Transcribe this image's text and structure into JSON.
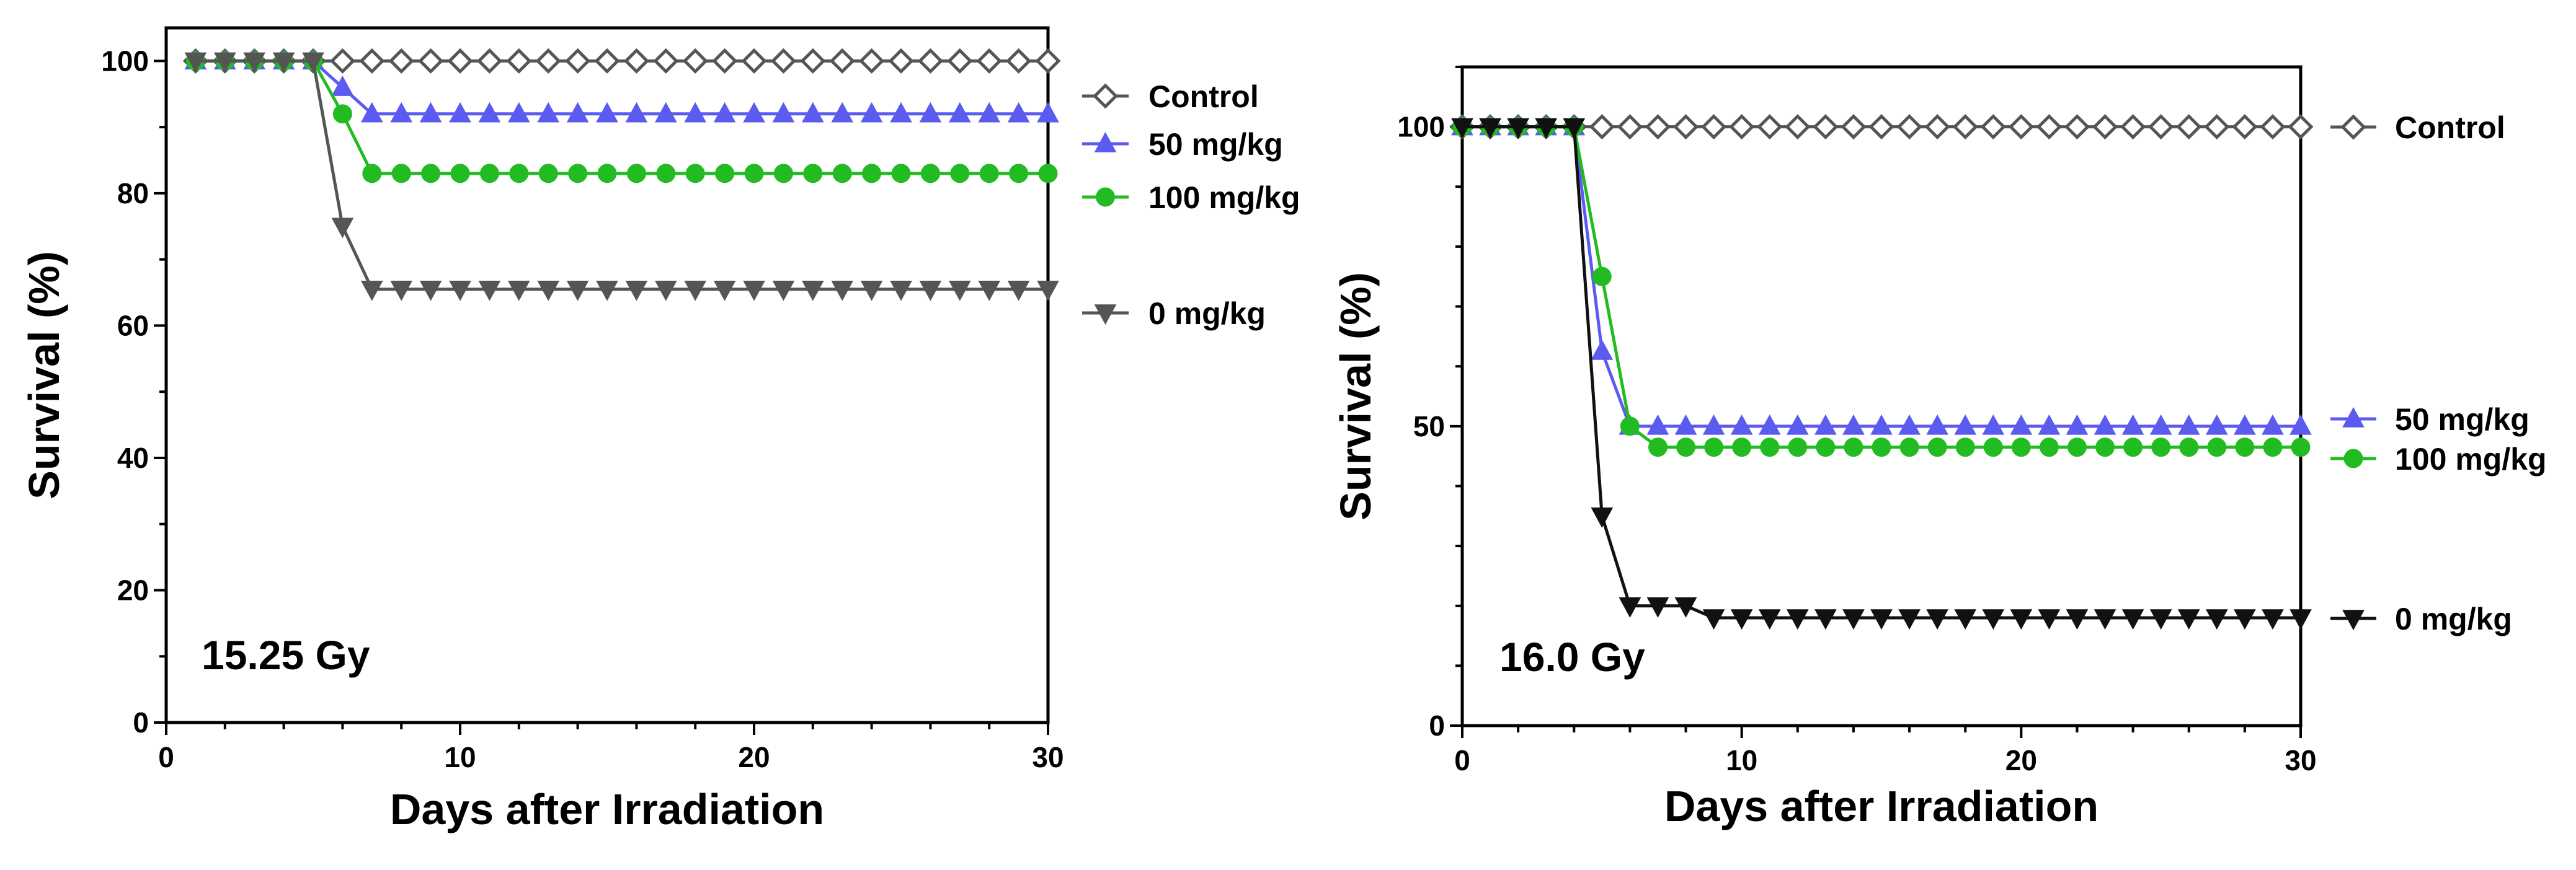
{
  "chart_data": [
    {
      "type": "line",
      "title": "",
      "annotation": "15.25 Gy",
      "xlabel": "Days after Irradiation",
      "ylabel": "Survival (%)",
      "xlim": [
        0,
        30
      ],
      "ylim": [
        0,
        105
      ],
      "xticks": [
        0,
        10,
        20,
        30
      ],
      "yticks": [
        0,
        20,
        40,
        60,
        80,
        100
      ],
      "x_tick_labels": [
        "0",
        "10",
        "20",
        "30"
      ],
      "y_tick_labels": [
        "0",
        "20",
        "40",
        "60",
        "80",
        "100"
      ],
      "grid": false,
      "legend_position": "right",
      "series": [
        {
          "name": "Control",
          "color": "#555555",
          "marker": "diamond-open",
          "x": [
            1,
            2,
            3,
            4,
            5,
            6,
            7,
            8,
            9,
            10,
            11,
            12,
            13,
            14,
            15,
            16,
            17,
            18,
            19,
            20,
            21,
            22,
            23,
            24,
            25,
            26,
            27,
            28,
            29,
            30
          ],
          "values": [
            100,
            100,
            100,
            100,
            100,
            100,
            100,
            100,
            100,
            100,
            100,
            100,
            100,
            100,
            100,
            100,
            100,
            100,
            100,
            100,
            100,
            100,
            100,
            100,
            100,
            100,
            100,
            100,
            100,
            100
          ]
        },
        {
          "name": "50 mg/kg",
          "color": "#5b5bf0",
          "marker": "triangle-up",
          "x": [
            1,
            2,
            3,
            4,
            5,
            6,
            7,
            8,
            9,
            10,
            11,
            12,
            13,
            14,
            15,
            16,
            17,
            18,
            19,
            20,
            21,
            22,
            23,
            24,
            25,
            26,
            27,
            28,
            29,
            30
          ],
          "values": [
            100,
            100,
            100,
            100,
            100,
            96,
            92,
            92,
            92,
            92,
            92,
            92,
            92,
            92,
            92,
            92,
            92,
            92,
            92,
            92,
            92,
            92,
            92,
            92,
            92,
            92,
            92,
            92,
            92,
            92
          ]
        },
        {
          "name": "100 mg/kg",
          "color": "#22bb22",
          "marker": "circle",
          "x": [
            1,
            2,
            3,
            4,
            5,
            6,
            7,
            8,
            9,
            10,
            11,
            12,
            13,
            14,
            15,
            16,
            17,
            18,
            19,
            20,
            21,
            22,
            23,
            24,
            25,
            26,
            27,
            28,
            29,
            30
          ],
          "values": [
            100,
            100,
            100,
            100,
            100,
            92,
            83,
            83,
            83,
            83,
            83,
            83,
            83,
            83,
            83,
            83,
            83,
            83,
            83,
            83,
            83,
            83,
            83,
            83,
            83,
            83,
            83,
            83,
            83,
            83
          ]
        },
        {
          "name": "0 mg/kg",
          "color": "#555555",
          "marker": "triangle-down",
          "x": [
            1,
            2,
            3,
            4,
            5,
            6,
            7,
            8,
            9,
            10,
            11,
            12,
            13,
            14,
            15,
            16,
            17,
            18,
            19,
            20,
            21,
            22,
            23,
            24,
            25,
            26,
            27,
            28,
            29,
            30
          ],
          "values": [
            100,
            100,
            100,
            100,
            100,
            75,
            65.5,
            65.5,
            65.5,
            65.5,
            65.5,
            65.5,
            65.5,
            65.5,
            65.5,
            65.5,
            65.5,
            65.5,
            65.5,
            65.5,
            65.5,
            65.5,
            65.5,
            65.5,
            65.5,
            65.5,
            65.5,
            65.5,
            65.5,
            65.5
          ]
        }
      ]
    },
    {
      "type": "line",
      "title": "",
      "annotation": "16.0 Gy",
      "xlabel": "Days after Irradiation",
      "ylabel": "Survival (%)",
      "xlim": [
        0,
        30
      ],
      "ylim": [
        0,
        110
      ],
      "xticks": [
        0,
        10,
        20,
        30
      ],
      "yticks": [
        0,
        50,
        100
      ],
      "x_tick_labels": [
        "0",
        "10",
        "20",
        "30"
      ],
      "y_tick_labels": [
        "0",
        "50",
        "100"
      ],
      "grid": false,
      "legend_position": "right",
      "series": [
        {
          "name": "Control",
          "color": "#555555",
          "marker": "diamond-open",
          "x": [
            0,
            1,
            2,
            3,
            4,
            5,
            6,
            7,
            8,
            9,
            10,
            11,
            12,
            13,
            14,
            15,
            16,
            17,
            18,
            19,
            20,
            21,
            22,
            23,
            24,
            25,
            26,
            27,
            28,
            29,
            30
          ],
          "values": [
            100,
            100,
            100,
            100,
            100,
            100,
            100,
            100,
            100,
            100,
            100,
            100,
            100,
            100,
            100,
            100,
            100,
            100,
            100,
            100,
            100,
            100,
            100,
            100,
            100,
            100,
            100,
            100,
            100,
            100,
            100
          ]
        },
        {
          "name": "50 mg/kg",
          "color": "#5b5bf0",
          "marker": "triangle-up",
          "x": [
            0,
            1,
            2,
            3,
            4,
            5,
            6,
            7,
            8,
            9,
            10,
            11,
            12,
            13,
            14,
            15,
            16,
            17,
            18,
            19,
            20,
            21,
            22,
            23,
            24,
            25,
            26,
            27,
            28,
            29,
            30
          ],
          "values": [
            100,
            100,
            100,
            100,
            100,
            62.5,
            50,
            50,
            50,
            50,
            50,
            50,
            50,
            50,
            50,
            50,
            50,
            50,
            50,
            50,
            50,
            50,
            50,
            50,
            50,
            50,
            50,
            50,
            50,
            50,
            50
          ]
        },
        {
          "name": "100 mg/kg",
          "color": "#22bb22",
          "marker": "circle",
          "x": [
            0,
            1,
            2,
            3,
            4,
            5,
            6,
            7,
            8,
            9,
            10,
            11,
            12,
            13,
            14,
            15,
            16,
            17,
            18,
            19,
            20,
            21,
            22,
            23,
            24,
            25,
            26,
            27,
            28,
            29,
            30
          ],
          "values": [
            100,
            100,
            100,
            100,
            100,
            75,
            50,
            46.5,
            46.5,
            46.5,
            46.5,
            46.5,
            46.5,
            46.5,
            46.5,
            46.5,
            46.5,
            46.5,
            46.5,
            46.5,
            46.5,
            46.5,
            46.5,
            46.5,
            46.5,
            46.5,
            46.5,
            46.5,
            46.5,
            46.5,
            46.5
          ]
        },
        {
          "name": "0 mg/kg",
          "color": "#111111",
          "marker": "triangle-down",
          "x": [
            0,
            1,
            2,
            3,
            4,
            5,
            6,
            7,
            8,
            9,
            10,
            11,
            12,
            13,
            14,
            15,
            16,
            17,
            18,
            19,
            20,
            21,
            22,
            23,
            24,
            25,
            26,
            27,
            28,
            29,
            30
          ],
          "values": [
            100,
            100,
            100,
            100,
            100,
            35,
            20,
            20,
            20,
            18,
            18,
            18,
            18,
            18,
            18,
            18,
            18,
            18,
            18,
            18,
            18,
            18,
            18,
            18,
            18,
            18,
            18,
            18,
            18,
            18,
            18
          ]
        }
      ]
    }
  ]
}
